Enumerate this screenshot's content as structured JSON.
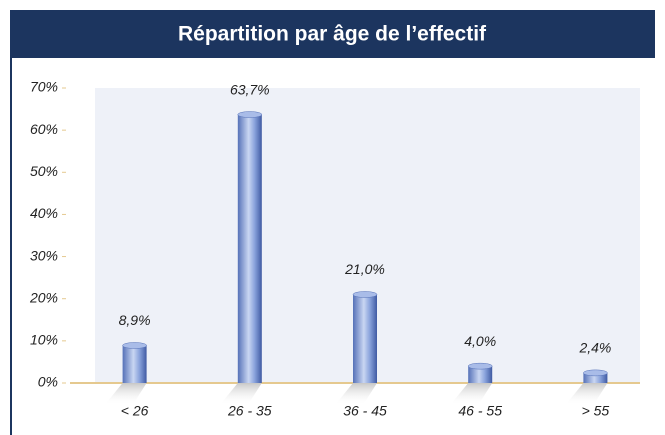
{
  "chart_data": {
    "type": "bar",
    "title": "Répartition par âge de l’effectif",
    "categories": [
      "< 26",
      "26 - 35",
      "36 - 45",
      "46 - 55",
      "> 55"
    ],
    "values": [
      8.9,
      63.7,
      21.0,
      4.0,
      2.4
    ],
    "value_labels": [
      "8,9%",
      "63,7%",
      "21,0%",
      "4,0%",
      "2,4%"
    ],
    "color": "#6d8cd0",
    "ylim": [
      0,
      70
    ],
    "yticks": [
      {
        "value": 0,
        "label": "0%"
      },
      {
        "value": 10,
        "label": "10%"
      },
      {
        "value": 20,
        "label": "20%"
      },
      {
        "value": 30,
        "label": "30%"
      },
      {
        "value": 40,
        "label": "40%"
      },
      {
        "value": 50,
        "label": "50%"
      },
      {
        "value": 60,
        "label": "60%"
      },
      {
        "value": 70,
        "label": "70%"
      }
    ],
    "grid": false
  }
}
